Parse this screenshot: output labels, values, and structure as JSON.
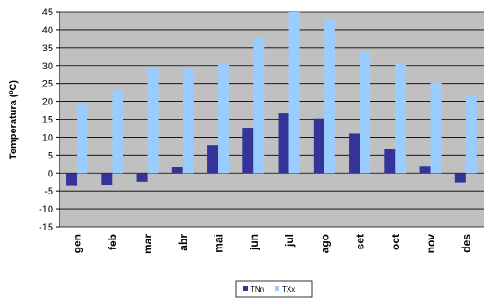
{
  "chart_data": {
    "type": "bar",
    "title": "",
    "xlabel": "",
    "ylabel": "Temperatura (ºC)",
    "categories": [
      "gen",
      "feb",
      "mar",
      "abr",
      "mai",
      "jun",
      "jul",
      "ago",
      "set",
      "oct",
      "nov",
      "des"
    ],
    "series": [
      {
        "name": "TNn",
        "color": "#333399",
        "values": [
          -3.6,
          -3.3,
          -2.4,
          1.8,
          7.8,
          12.6,
          16.6,
          15.2,
          11.0,
          6.8,
          2.0,
          -2.6
        ]
      },
      {
        "name": "TXx",
        "color": "#99ccff",
        "values": [
          19.3,
          23.0,
          29.4,
          29.1,
          30.4,
          37.8,
          45.0,
          43.0,
          33.8,
          30.4,
          25.2,
          21.8
        ]
      }
    ],
    "ylim": [
      -15,
      45
    ],
    "yticks": [
      -15,
      -10,
      -5,
      0,
      5,
      10,
      15,
      20,
      25,
      30,
      35,
      40,
      45
    ],
    "grid": true,
    "plot_background": "#c0c0c0",
    "legend_position": "bottom"
  }
}
